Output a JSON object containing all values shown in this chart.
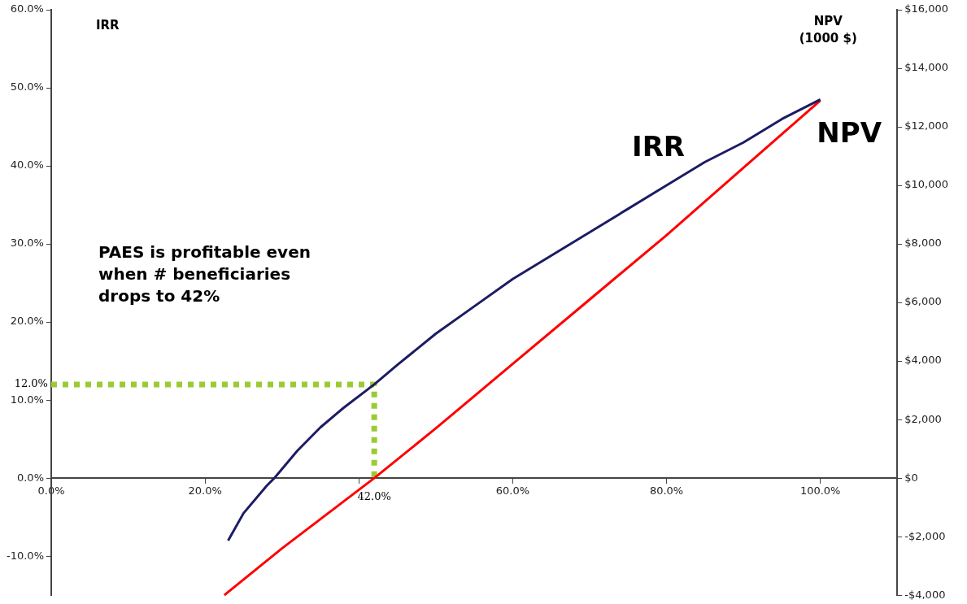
{
  "chart_data": {
    "type": "line",
    "ylabel": "IRR",
    "y2label": "NPV (1000 $)",
    "annotations": [
      "PAES is profitable even when # beneficiaries drops to 42%",
      {
        "text": "12.0%",
        "x": 0,
        "y": 12
      },
      {
        "text": "42.0%",
        "x": 42,
        "y": 0
      }
    ],
    "series": [
      {
        "name": "IRR",
        "color": "#1c1c64",
        "x": [
          23,
          25,
          28,
          29,
          32,
          35,
          38,
          42,
          45,
          50,
          55,
          60,
          65,
          70,
          75,
          80,
          85,
          90,
          95,
          100
        ],
        "values": [
          -8,
          -4.5,
          -1,
          0,
          3.5,
          6.5,
          9,
          12,
          14.5,
          18.5,
          22,
          25.5,
          28.5,
          31.5,
          34.5,
          37.5,
          40.5,
          43,
          46,
          48.5
        ]
      },
      {
        "name": "NPV",
        "color": "#ff0000",
        "axis": "y2",
        "x": [
          22.5,
          30,
          42,
          50,
          60,
          70,
          80,
          90,
          100
        ],
        "values": [
          -4000,
          -2400,
          0,
          1700,
          3900,
          6100,
          8300,
          10600,
          12900
        ]
      },
      {
        "color": "#99cc33",
        "line_style": "dotted",
        "x": [
          0,
          42,
          42
        ],
        "values": [
          12,
          12,
          0
        ]
      }
    ],
    "xlim": [
      0,
      110
    ],
    "xticks": [
      {
        "value": 0,
        "label": "0.0%"
      },
      {
        "value": 20,
        "label": "20.0%"
      },
      {
        "value": 40,
        "label": null
      },
      {
        "value": 60,
        "label": "60.0%"
      },
      {
        "value": 80,
        "label": "80.0%"
      },
      {
        "value": 100,
        "label": "100.0%"
      }
    ],
    "ylim": [
      -15,
      60
    ],
    "yticks": [
      {
        "value": -10,
        "label": "-10.0%"
      },
      {
        "value": 0,
        "label": "0.0%"
      },
      {
        "value": 10,
        "label": "10.0%"
      },
      {
        "value": 20,
        "label": "20.0%"
      },
      {
        "value": 30,
        "label": "30.0%"
      },
      {
        "value": 40,
        "label": "40.0%"
      },
      {
        "value": 50,
        "label": "50.0%"
      },
      {
        "value": 60,
        "label": "60.0%"
      }
    ],
    "y2lim": [
      -4000,
      16000
    ],
    "y2ticks": [
      {
        "value": -4000,
        "label": "-$4,000"
      },
      {
        "value": -2000,
        "label": "-$2,000"
      },
      {
        "value": 0,
        "label": "$0"
      },
      {
        "value": 2000,
        "label": "$2,000"
      },
      {
        "value": 4000,
        "label": "$4,000"
      },
      {
        "value": 6000,
        "label": "$6,000"
      },
      {
        "value": 8000,
        "label": "$8,000"
      },
      {
        "value": 10000,
        "label": "$10,000"
      },
      {
        "value": 12000,
        "label": "$12,000"
      },
      {
        "value": 14000,
        "label": "$14,000"
      },
      {
        "value": 16000,
        "label": "$16,000"
      }
    ],
    "grid": false,
    "legend": false,
    "marker": "none",
    "line_style": "solid"
  }
}
